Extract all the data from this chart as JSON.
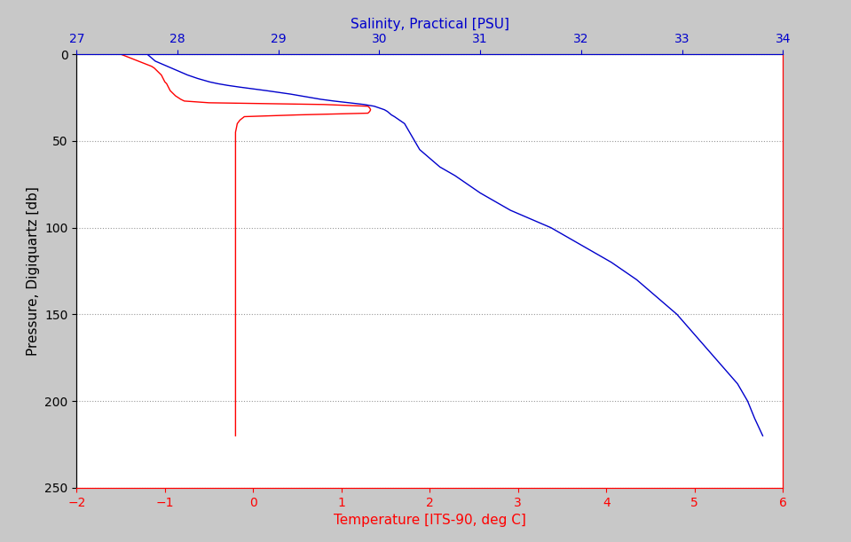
{
  "xlabel_bottom": "Temperature [ITS-90, deg C]",
  "xlabel_top": "Salinity, Practical [PSU]",
  "ylabel": "Pressure, Digiquartz [db]",
  "temp_color": "#ff0000",
  "sal_color": "#0000cc",
  "xlim_temp": [
    -2,
    6
  ],
  "xlim_sal": [
    27,
    34
  ],
  "ylim": [
    0,
    250
  ],
  "yticks": [
    0,
    50,
    100,
    150,
    200,
    250
  ],
  "xticks_temp": [
    -2,
    -1,
    0,
    1,
    2,
    3,
    4,
    5,
    6
  ],
  "xticks_sal": [
    27,
    28,
    29,
    30,
    31,
    32,
    33,
    34
  ],
  "grid_color": "#999999",
  "bg_color": "#c8c8c8",
  "plot_bg": "#ffffff",
  "temp_pressure": [
    0,
    1,
    2,
    3,
    4,
    5,
    6,
    7,
    8,
    9,
    10,
    11,
    12,
    13,
    14,
    15,
    16,
    17,
    18,
    19,
    20,
    21,
    22,
    23,
    24,
    25,
    26,
    27,
    28,
    29,
    30,
    31,
    32,
    33,
    34,
    35,
    36,
    38,
    40,
    45,
    50,
    60,
    70,
    80,
    90,
    100,
    110,
    120,
    130,
    140,
    150,
    160,
    170,
    180,
    190,
    200,
    210,
    220
  ],
  "temp_vals": [
    -1.5,
    -1.45,
    -1.4,
    -1.35,
    -1.3,
    -1.25,
    -1.2,
    -1.15,
    -1.12,
    -1.1,
    -1.08,
    -1.06,
    -1.04,
    -1.03,
    -1.02,
    -1.01,
    -1.0,
    -0.98,
    -0.97,
    -0.96,
    -0.95,
    -0.94,
    -0.92,
    -0.9,
    -0.88,
    -0.85,
    -0.82,
    -0.78,
    -0.5,
    0.8,
    1.3,
    1.32,
    1.33,
    1.32,
    1.3,
    0.5,
    -0.1,
    -0.15,
    -0.18,
    -0.2,
    -0.2,
    -0.2,
    -0.2,
    -0.2,
    -0.2,
    -0.2,
    -0.2,
    -0.2,
    -0.2,
    -0.2,
    -0.2,
    -0.2,
    -0.2,
    -0.2,
    -0.2,
    -0.2,
    -0.2,
    -0.2
  ],
  "sal_pressure": [
    0,
    1,
    2,
    3,
    4,
    5,
    6,
    7,
    8,
    9,
    10,
    11,
    12,
    13,
    14,
    15,
    16,
    17,
    18,
    19,
    20,
    21,
    22,
    23,
    24,
    25,
    26,
    27,
    28,
    29,
    30,
    31,
    32,
    33,
    34,
    35,
    36,
    38,
    40,
    45,
    50,
    55,
    60,
    65,
    70,
    80,
    90,
    100,
    110,
    120,
    130,
    140,
    150,
    160,
    170,
    180,
    190,
    200,
    210,
    220
  ],
  "sal_vals": [
    27.7,
    27.72,
    27.74,
    27.76,
    27.78,
    27.82,
    27.86,
    27.9,
    27.94,
    27.98,
    28.02,
    28.06,
    28.1,
    28.15,
    28.2,
    28.26,
    28.32,
    28.4,
    28.5,
    28.62,
    28.75,
    28.88,
    29.0,
    29.12,
    29.22,
    29.32,
    29.42,
    29.55,
    29.7,
    29.85,
    29.95,
    30.0,
    30.05,
    30.08,
    30.1,
    30.12,
    30.15,
    30.2,
    30.25,
    30.3,
    30.35,
    30.4,
    30.5,
    30.6,
    30.75,
    31.0,
    31.3,
    31.7,
    32.0,
    32.3,
    32.55,
    32.75,
    32.95,
    33.1,
    33.25,
    33.4,
    33.55,
    33.65,
    33.72,
    33.8
  ]
}
